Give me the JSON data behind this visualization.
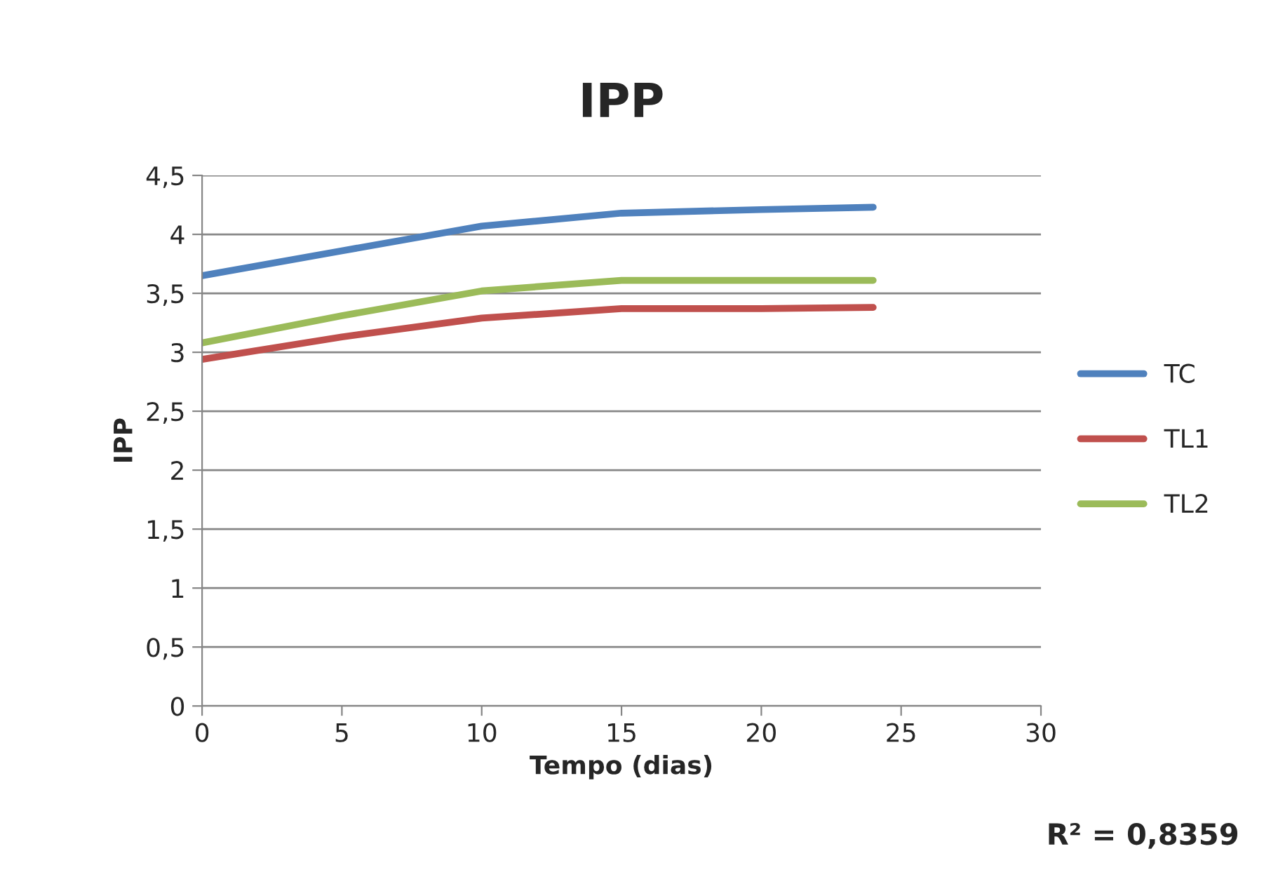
{
  "chart_data": {
    "type": "line",
    "title": "IPP",
    "xlabel": "Tempo (dias)",
    "ylabel": "IPP",
    "x": [
      0,
      5,
      10,
      15,
      20,
      24
    ],
    "series": [
      {
        "name": "TC",
        "color": "#4f81bd",
        "values": [
          3.65,
          3.86,
          4.07,
          4.18,
          4.21,
          4.23
        ]
      },
      {
        "name": "TL1",
        "color": "#c0504d",
        "values": [
          2.94,
          3.13,
          3.29,
          3.37,
          3.37,
          3.38
        ]
      },
      {
        "name": "TL2",
        "color": "#9bbb59",
        "values": [
          3.08,
          3.31,
          3.52,
          3.61,
          3.61,
          3.61
        ]
      }
    ],
    "xlim": [
      0,
      30
    ],
    "xticks": [
      0,
      5,
      10,
      15,
      20,
      25,
      30
    ],
    "ylim": [
      0,
      4.5
    ],
    "yticks": [
      0,
      {
        "value": 0.5,
        "label": "0,5"
      },
      1,
      {
        "value": 1.5,
        "label": "1,5"
      },
      2,
      {
        "value": 2.5,
        "label": "2,5"
      },
      3,
      {
        "value": 3.5,
        "label": "3,5"
      },
      4,
      {
        "value": 4.5,
        "label": "4,5"
      }
    ],
    "grid": "y",
    "legend": "right",
    "marker": "none",
    "line_style": "solid",
    "annotations": [
      "R² = 0,8359"
    ]
  }
}
